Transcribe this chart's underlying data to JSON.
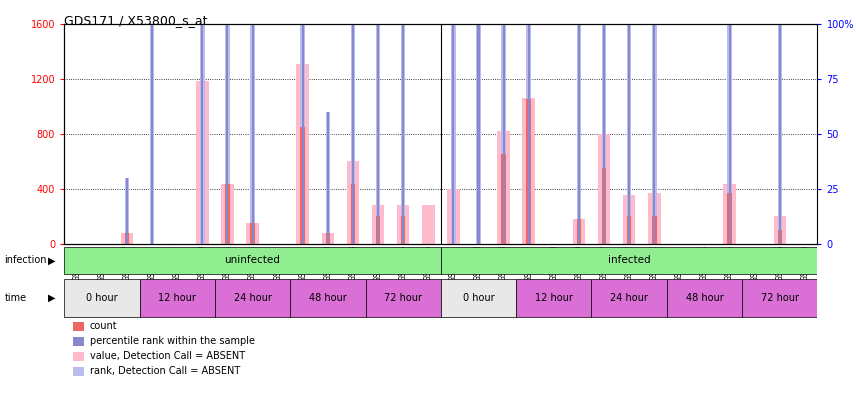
{
  "title": "GDS171 / X53800_s_at",
  "samples": [
    "GSM2591",
    "GSM2607",
    "GSM2617",
    "GSM2597",
    "GSM2609",
    "GSM2619",
    "GSM2601",
    "GSM2611",
    "GSM2621",
    "GSM2603",
    "GSM2613",
    "GSM2623",
    "GSM2605",
    "GSM2615",
    "GSM2625",
    "GSM2595",
    "GSM2608",
    "GSM2618",
    "GSM2599",
    "GSM2610",
    "GSM2620",
    "GSM2602",
    "GSM2612",
    "GSM2622",
    "GSM2604",
    "GSM2614",
    "GSM2624",
    "GSM2606",
    "GSM2616",
    "GSM2626"
  ],
  "absent_count": [
    0,
    0,
    80,
    0,
    0,
    1180,
    430,
    150,
    0,
    1310,
    80,
    600,
    280,
    280,
    280,
    400,
    0,
    820,
    1060,
    0,
    180,
    800,
    350,
    370,
    0,
    0,
    430,
    0,
    200,
    0
  ],
  "absent_rank": [
    0,
    0,
    30,
    100,
    0,
    560,
    400,
    150,
    0,
    860,
    60,
    430,
    200,
    200,
    0,
    400,
    430,
    820,
    350,
    0,
    110,
    400,
    200,
    210,
    0,
    0,
    390,
    0,
    130,
    0
  ],
  "count": [
    0,
    0,
    80,
    0,
    0,
    0,
    430,
    150,
    0,
    850,
    80,
    430,
    200,
    200,
    0,
    0,
    0,
    650,
    1050,
    0,
    180,
    550,
    200,
    200,
    0,
    0,
    370,
    0,
    100,
    0
  ],
  "rank": [
    0,
    0,
    30,
    100,
    0,
    560,
    400,
    150,
    0,
    860,
    60,
    430,
    200,
    200,
    0,
    400,
    430,
    820,
    350,
    0,
    110,
    400,
    200,
    210,
    0,
    0,
    390,
    0,
    130,
    0
  ],
  "ylim_left": [
    0,
    1600
  ],
  "ylim_right": [
    0,
    100
  ],
  "yticks_left": [
    0,
    400,
    800,
    1200,
    1600
  ],
  "yticks_right": [
    0,
    25,
    50,
    75,
    100
  ],
  "count_color": "#EE6666",
  "rank_color": "#8888CC",
  "absent_count_color": "#FFBBCC",
  "absent_rank_color": "#BBBBEE",
  "bg_color": "#FFFFFF"
}
